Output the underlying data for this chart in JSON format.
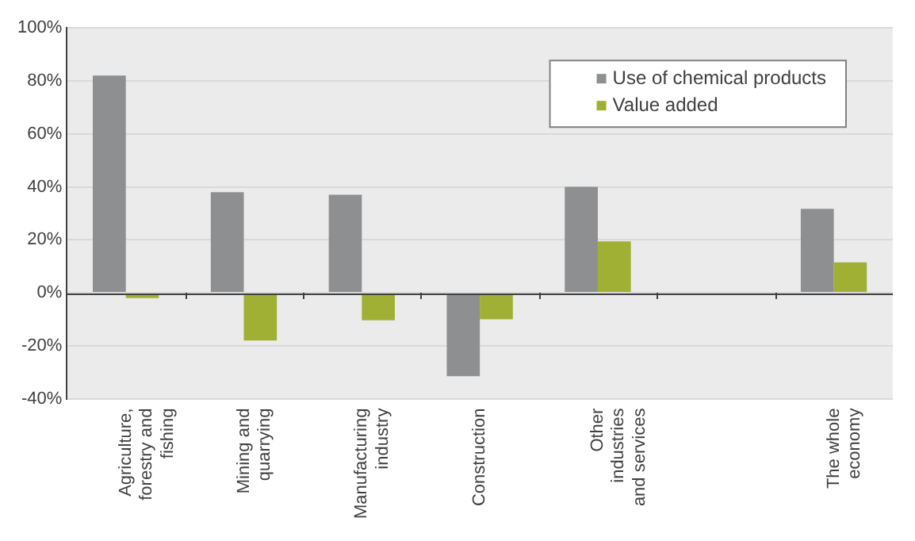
{
  "chart_data": {
    "type": "bar",
    "categories": [
      "Agriculture, forestry and fishing",
      "Mining and quarrying",
      "Manufacturing industry",
      "Construction",
      "Other industries and services",
      null,
      "The whole economy"
    ],
    "series": [
      {
        "name": "Use of chemical products",
        "color": "#8e8f91",
        "values": [
          82,
          38,
          37,
          -31.5,
          40,
          null,
          31.7
        ]
      },
      {
        "name": "Value added",
        "color": "#a0b034",
        "values": [
          -2,
          -18,
          -10.4,
          -10,
          19.4,
          null,
          11.5
        ]
      }
    ],
    "ylim": [
      -40,
      100
    ],
    "yticks": [
      {
        "value": -40,
        "label": "-40%"
      },
      {
        "value": -20,
        "label": "-20%"
      },
      {
        "value": 0,
        "label": "0%"
      },
      {
        "value": 20,
        "label": "20%"
      },
      {
        "value": 40,
        "label": "40%"
      },
      {
        "value": 60,
        "label": "60%"
      },
      {
        "value": 80,
        "label": "80%"
      },
      {
        "value": 100,
        "label": "100%"
      }
    ],
    "grid": "y",
    "legend": "top right"
  }
}
